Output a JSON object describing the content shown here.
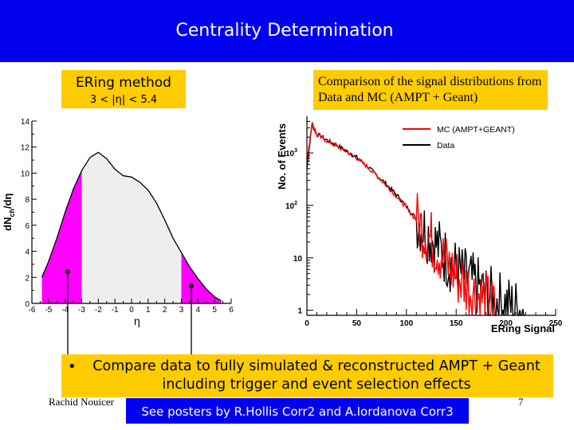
{
  "slide": {
    "title": "Centrality Determination",
    "ering_title": "ERing method",
    "ering_range": "3 < |η| < 5.4",
    "comparison_text": "Comparison of the signal distributions from Data and MC (AMPT + Geant)",
    "bullet_symbol": "•",
    "bullet_text": "Compare data to fully simulated & reconstructed AMPT + Geant including trigger and event selection effects",
    "author": "Rachid Nouicer",
    "page_number": "7",
    "posters_text": "See posters by R.Hollis Corr2 and A.Iordanova Corr3",
    "colors": {
      "header": "#0000ee",
      "highlight_box": "#ffcc00",
      "posters_box": "#0000ee",
      "magenta": "#ff00ff"
    }
  },
  "chart_data": [
    {
      "type": "area",
      "ylabel": "dN_ch/dη",
      "ylabel_main": "dN",
      "ylabel_sub": "ch",
      "ylabel_tail": "/dη",
      "xlabel": "η",
      "xlim": [
        -6,
        6
      ],
      "ylim": [
        0,
        14
      ],
      "x_ticks": [
        "-6",
        "-5",
        "-4",
        "-3",
        "-2",
        "-1",
        "0",
        "1",
        "2",
        "3",
        "4",
        "5",
        "6"
      ],
      "y_ticks": [
        "0",
        "2",
        "4",
        "6",
        "8",
        "10",
        "12",
        "14"
      ],
      "x": [
        -5.4,
        -5.0,
        -4.5,
        -4.0,
        -3.5,
        -3.0,
        -2.5,
        -2.0,
        -1.5,
        -1.0,
        -0.5,
        0.0,
        0.5,
        1.0,
        1.5,
        2.0,
        2.5,
        3.0,
        3.5,
        4.0,
        4.5,
        5.0,
        5.4
      ],
      "y": [
        2.0,
        3.2,
        5.0,
        7.0,
        8.8,
        10.2,
        11.2,
        11.6,
        11.1,
        10.3,
        9.8,
        9.7,
        9.3,
        8.7,
        7.7,
        6.4,
        5.0,
        3.9,
        2.8,
        1.9,
        1.1,
        0.5,
        0.2
      ],
      "shaded_regions": [
        {
          "from": -5.4,
          "to": -3.0,
          "color": "#ff00ff"
        },
        {
          "from": -3.0,
          "to": 3.0,
          "color": "#eeeeee"
        },
        {
          "from": 3.0,
          "to": 5.4,
          "color": "#ff00ff"
        }
      ],
      "annotations": [
        "arrows at η = -4.2 and η = 4.2 pointing from the bullet box to the forward rapidity regions"
      ]
    },
    {
      "type": "line",
      "xlabel": "ERing Signal",
      "ylabel": "No. of Events",
      "xlim": [
        0,
        250
      ],
      "ylim": [
        0.8,
        5000
      ],
      "y_scale": "log",
      "x_ticks": [
        "0",
        "50",
        "100",
        "150",
        "200",
        "250"
      ],
      "y_ticks_base": [
        "1",
        "10",
        "10",
        "10"
      ],
      "y_ticks_exp": [
        "",
        "",
        "2",
        "3"
      ],
      "legend": [
        {
          "name": "MC (AMPT+GEANT)",
          "color": "#ff0000"
        },
        {
          "name": "Data",
          "color": "#000000"
        }
      ],
      "legend_position": "top-right",
      "series": [
        {
          "name": "MC (AMPT+GEANT)",
          "x": [
            0,
            5,
            10,
            20,
            30,
            40,
            50,
            60,
            70,
            80,
            90,
            100,
            110,
            120,
            130,
            140,
            150,
            160,
            170,
            180,
            190
          ],
          "y": [
            600,
            3800,
            2200,
            1700,
            1350,
            1050,
            800,
            560,
            370,
            240,
            150,
            90,
            52,
            30,
            16,
            8,
            4.5,
            3,
            2,
            1.5,
            1
          ]
        },
        {
          "name": "Data",
          "x": [
            0,
            5,
            10,
            20,
            30,
            40,
            50,
            60,
            70,
            80,
            90,
            100,
            110,
            120,
            130,
            140,
            150,
            160,
            170,
            180,
            190,
            200,
            210,
            220
          ],
          "y": [
            500,
            3500,
            2300,
            1750,
            1400,
            1080,
            820,
            570,
            380,
            250,
            160,
            95,
            55,
            32,
            18,
            10,
            6,
            4,
            3,
            2,
            1.6,
            1.3,
            1.1,
            1
          ]
        }
      ]
    }
  ]
}
